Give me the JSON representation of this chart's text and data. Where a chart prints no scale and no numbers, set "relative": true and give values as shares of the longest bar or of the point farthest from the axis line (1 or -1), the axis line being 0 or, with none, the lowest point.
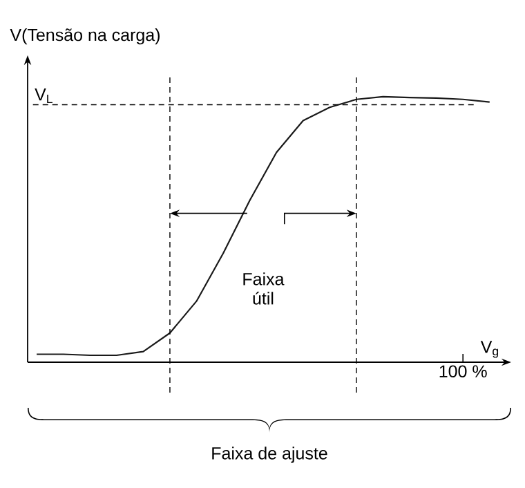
{
  "chart_data": {
    "type": "line",
    "relative": true,
    "ylabel": "V(Tensão na carga)",
    "xlabel": "V$_{g}$",
    "categories": [
      null,
      null,
      null,
      null,
      null,
      null,
      null,
      null,
      null,
      null,
      null,
      null,
      null,
      null,
      null,
      null,
      null,
      null
    ],
    "values": [
      0.03,
      0.03,
      0.026,
      0.026,
      0.04,
      0.11,
      0.23,
      0.41,
      0.61,
      0.79,
      0.91,
      0.96,
      0.99,
      1,
      0.997,
      0.995,
      0.99,
      0.98
    ],
    "color": "#1a1a1a",
    "ref_lines": [
      {
        "axis": "y",
        "value": 0.97,
        "label": "V$_{L}$",
        "line_style": "dashed"
      }
    ],
    "annotations": [
      "Faixa útil",
      "Faixa de ajuste",
      "100 %"
    ],
    "marker": "none",
    "line_style": "solid"
  }
}
